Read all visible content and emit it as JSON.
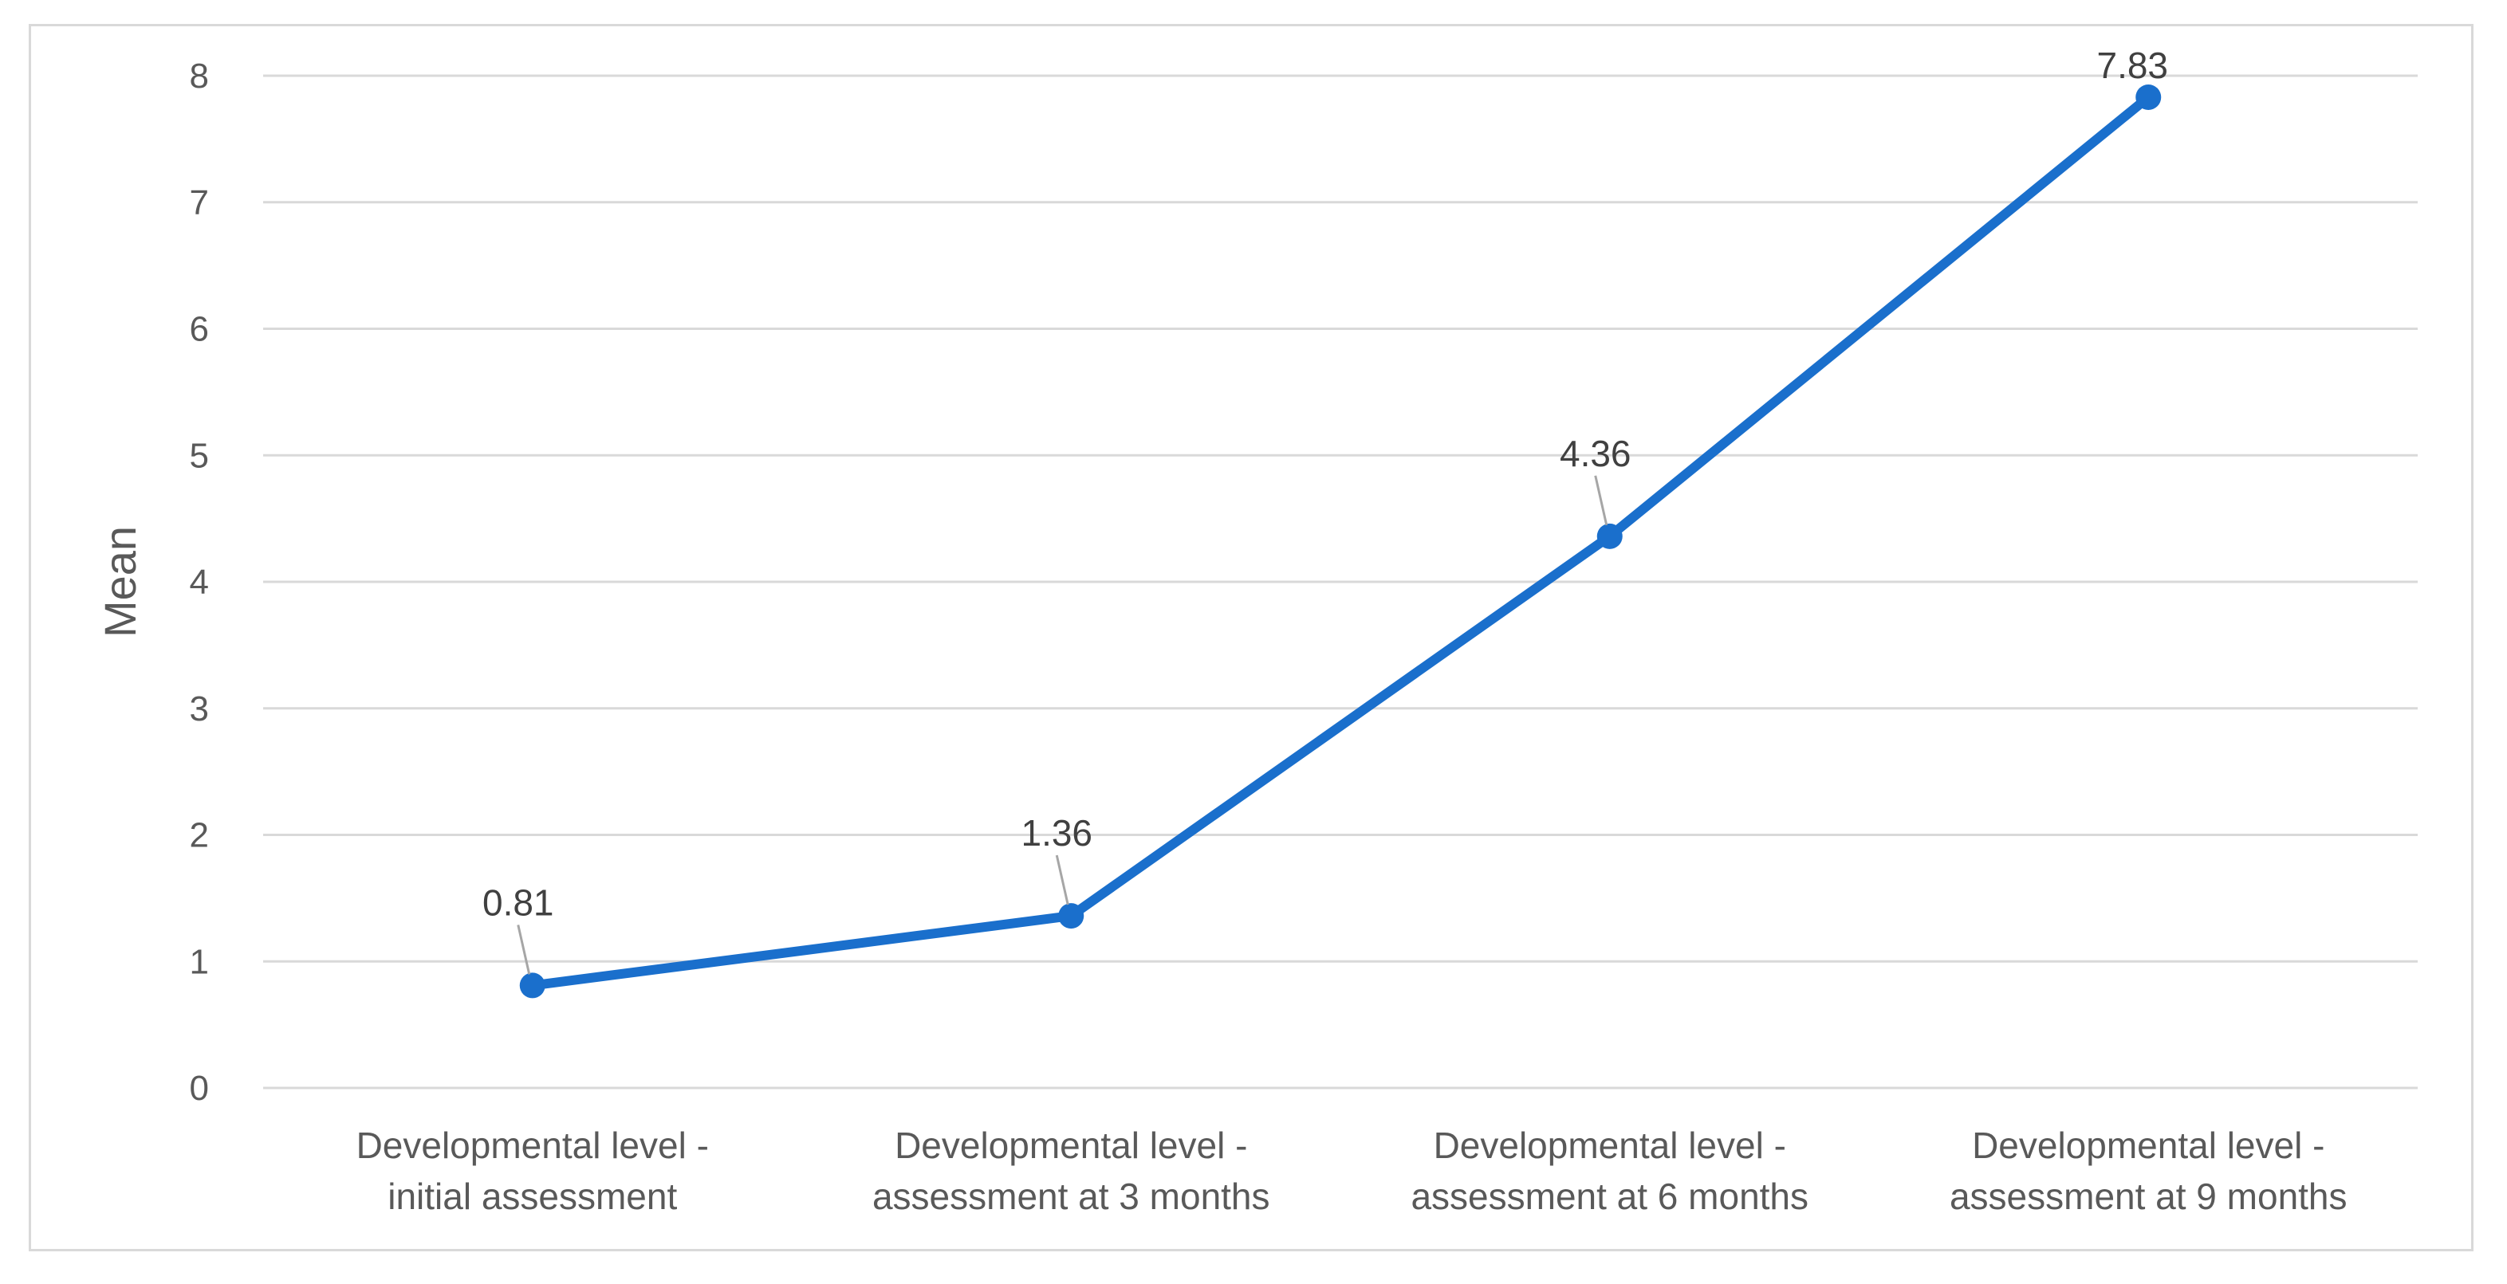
{
  "chart_data": {
    "type": "line",
    "title": "",
    "xlabel": "",
    "ylabel": "Mean",
    "ylim": [
      0,
      8
    ],
    "yticks": [
      0,
      1,
      2,
      3,
      4,
      5,
      6,
      7,
      8
    ],
    "grid": true,
    "legend": "none",
    "categories": [
      [
        "Developmental level -",
        "initial assessment"
      ],
      [
        "Developmental level -",
        "assessment at 3 months"
      ],
      [
        "Developmental level -",
        "assessment at 6 months"
      ],
      [
        "Developmental level -",
        "assessment at 9 months"
      ]
    ],
    "series": [
      {
        "values": [
          0.81,
          1.36,
          4.36,
          7.83
        ],
        "data_labels": [
          "0.81",
          "1.36",
          "4.36",
          "7.83"
        ]
      }
    ],
    "colors": {
      "line": "#1a6fcc",
      "grid": "#d9d9d9",
      "text": "#595959",
      "label": "#404040",
      "leader": "#a6a6a6"
    }
  }
}
